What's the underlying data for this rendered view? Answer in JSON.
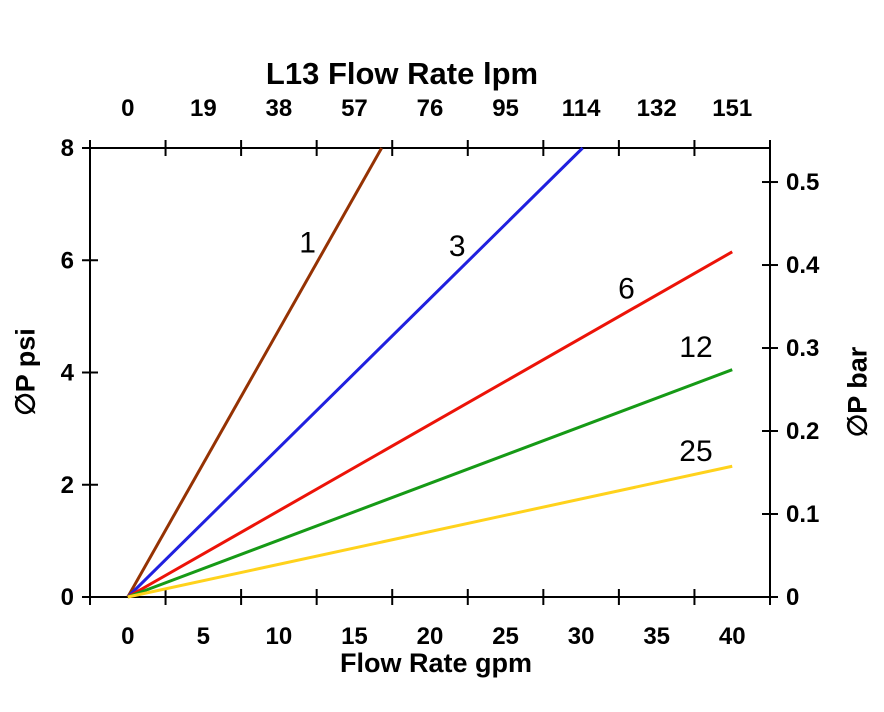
{
  "chart_data": {
    "type": "line",
    "title": "L13 Flow Rate lpm",
    "background": "#FFFFFF",
    "axis_color": "#000000",
    "grid": false,
    "legend": "inline-line-labels",
    "axes": {
      "top": {
        "label": "L13 Flow Rate lpm",
        "ticks": [
          "0",
          "19",
          "38",
          "57",
          "76",
          "95",
          "114",
          "132",
          "151"
        ],
        "unit": "lpm"
      },
      "bottom": {
        "label": "Flow Rate gpm",
        "ticks": [
          "0",
          "5",
          "10",
          "15",
          "20",
          "25",
          "30",
          "35",
          "40"
        ],
        "unit": "gpm",
        "range": [
          0,
          40
        ]
      },
      "left": {
        "label": "∅P psi",
        "ticks": [
          "0",
          "2",
          "4",
          "6",
          "8"
        ],
        "tick_values": [
          0,
          2,
          4,
          6,
          8
        ],
        "range": [
          0,
          8
        ]
      },
      "right": {
        "label": "∅P bar",
        "ticks": [
          "0",
          "0.1",
          "0.2",
          "0.3",
          "0.4",
          "0.5"
        ],
        "tick_values": [
          0,
          0.1,
          0.2,
          0.3,
          0.4,
          0.5
        ],
        "range": [
          0,
          0.541
        ]
      }
    },
    "series": [
      {
        "name": "1",
        "color": "#953203",
        "points_gpm_psi": [
          [
            0,
            0
          ],
          [
            16.8,
            8.0
          ]
        ],
        "label_pos_gpm_psi": [
          11.9,
          6.32
        ]
      },
      {
        "name": "3",
        "color": "#2020DF",
        "points_gpm_psi": [
          [
            0,
            0
          ],
          [
            30.1,
            8.0
          ]
        ],
        "label_pos_gpm_psi": [
          21.8,
          6.25
        ]
      },
      {
        "name": "6",
        "color": "#EC1308",
        "points_gpm_psi": [
          [
            0,
            0
          ],
          [
            40,
            6.15
          ]
        ],
        "label_pos_gpm_psi": [
          33.0,
          5.5
        ]
      },
      {
        "name": "12",
        "color": "#169A16",
        "points_gpm_psi": [
          [
            0,
            0
          ],
          [
            40,
            4.05
          ]
        ],
        "label_pos_gpm_psi": [
          37.6,
          4.45
        ]
      },
      {
        "name": "25",
        "color": "#FFD21C",
        "points_gpm_psi": [
          [
            0,
            0
          ],
          [
            40,
            2.33
          ]
        ],
        "label_pos_gpm_psi": [
          37.6,
          2.6
        ]
      }
    ]
  }
}
